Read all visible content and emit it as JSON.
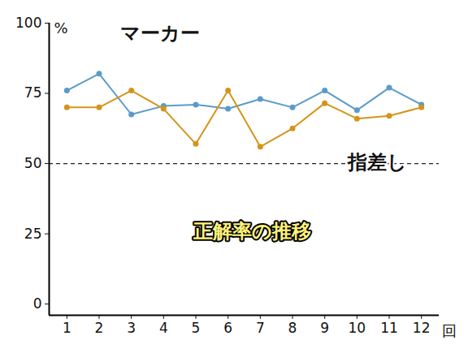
{
  "chart_data": {
    "type": "line",
    "title": "正解率の推移",
    "x_label": "回",
    "y_label": "%",
    "x": [
      1,
      2,
      3,
      4,
      5,
      6,
      7,
      8,
      9,
      10,
      11,
      12
    ],
    "series": [
      {
        "name": "マーカー",
        "color": "#5b9bc8",
        "marker": "circle",
        "values": [
          76,
          82,
          67.5,
          70.5,
          71,
          69.5,
          73,
          70,
          76,
          69,
          77,
          71
        ]
      },
      {
        "name": "指差し",
        "color": "#d4951a",
        "marker": "circle",
        "values": [
          70,
          70,
          76,
          69.5,
          57,
          76,
          56,
          62.5,
          71.5,
          66,
          67,
          70
        ]
      }
    ],
    "reference_line": 50,
    "xlim": [
      0.45,
      12.55
    ],
    "xticks": [
      1,
      2,
      3,
      4,
      5,
      6,
      7,
      8,
      9,
      10,
      11,
      12
    ],
    "ylim": [
      -4,
      100
    ],
    "yticks": [
      0,
      25,
      50,
      75,
      100
    ],
    "grid": false
  }
}
